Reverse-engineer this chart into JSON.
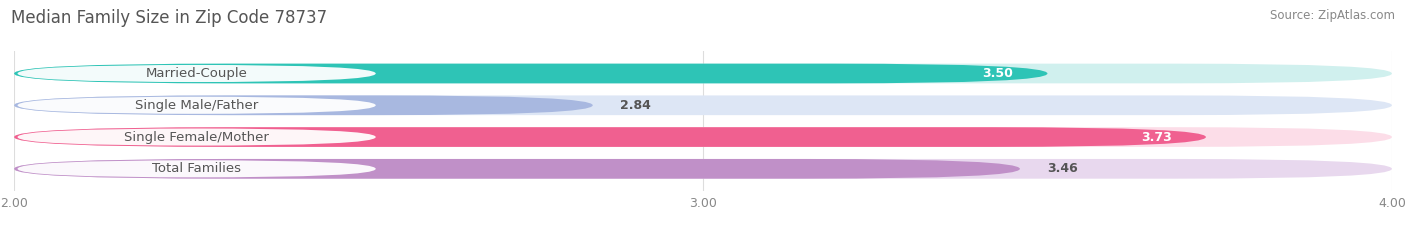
{
  "title": "Median Family Size in Zip Code 78737",
  "source": "Source: ZipAtlas.com",
  "categories": [
    "Married-Couple",
    "Single Male/Father",
    "Single Female/Mother",
    "Total Families"
  ],
  "values": [
    3.5,
    2.84,
    3.73,
    3.46
  ],
  "bar_colors": [
    "#2ec4b6",
    "#a8b8e0",
    "#f06090",
    "#c090c8"
  ],
  "bar_bg_colors": [
    "#d0f0ee",
    "#dde6f5",
    "#fcdde8",
    "#e8d8ee"
  ],
  "xlim_data": [
    2.0,
    4.0
  ],
  "xticks": [
    2.0,
    3.0,
    4.0
  ],
  "xtick_labels": [
    "2.00",
    "3.00",
    "4.00"
  ],
  "bar_height": 0.62,
  "bar_gap": 0.38,
  "figsize": [
    14.06,
    2.33
  ],
  "dpi": 100,
  "title_fontsize": 12,
  "label_fontsize": 9.5,
  "value_fontsize": 9,
  "source_fontsize": 8.5,
  "title_color": "#555555",
  "source_color": "#888888",
  "tick_color": "#888888",
  "background_color": "#ffffff",
  "grid_color": "#dddddd",
  "label_box_color": "#ffffff",
  "label_text_color": "#555555",
  "value_color_inside": "#ffffff",
  "value_color_outside": "#555555",
  "value_threshold": 3.5
}
